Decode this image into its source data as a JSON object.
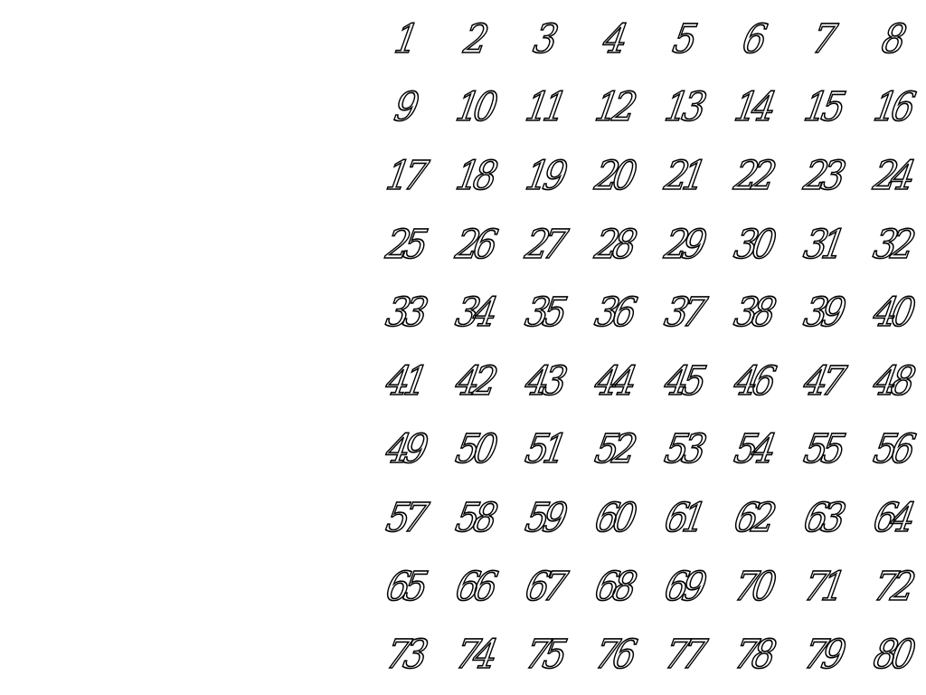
{
  "sheet": {
    "numbers": [
      "1",
      "2",
      "3",
      "4",
      "5",
      "6",
      "7",
      "8",
      "9",
      "10",
      "11",
      "12",
      "13",
      "14",
      "15",
      "16",
      "17",
      "18",
      "19",
      "20",
      "21",
      "22",
      "23",
      "24",
      "25",
      "26",
      "27",
      "28",
      "29",
      "30",
      "31",
      "32",
      "33",
      "34",
      "35",
      "36",
      "37",
      "38",
      "39",
      "40",
      "41",
      "42",
      "43",
      "44",
      "45",
      "46",
      "47",
      "48",
      "49",
      "50",
      "51",
      "52",
      "53",
      "54",
      "55",
      "56",
      "57",
      "58",
      "59",
      "60",
      "61",
      "62",
      "63",
      "64",
      "65",
      "66",
      "67",
      "68",
      "69",
      "70",
      "71",
      "72",
      "73",
      "74",
      "75",
      "76",
      "77",
      "78",
      "79",
      "80"
    ]
  }
}
